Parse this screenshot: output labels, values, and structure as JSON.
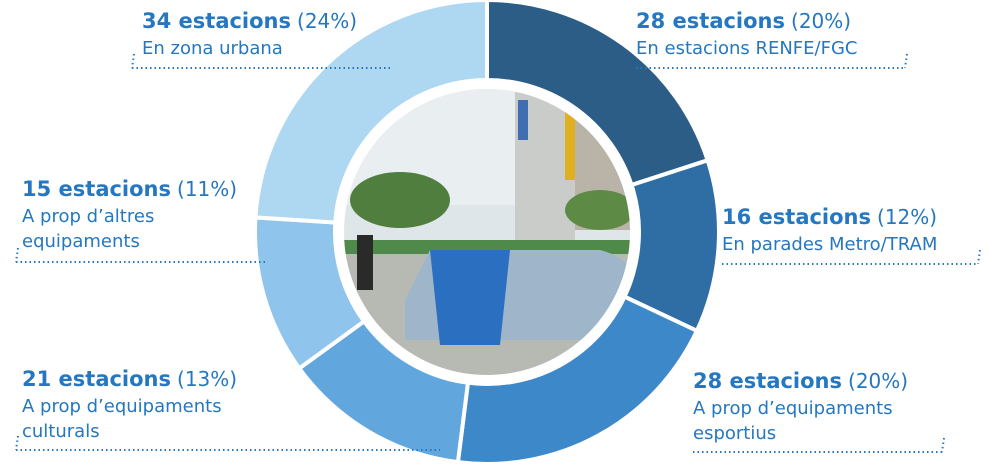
{
  "chart_data": {
    "type": "donut",
    "labels": [
      "28 estacions",
      "16 estacions",
      "28 estacions",
      "21 estacions",
      "15 estacions",
      "34 estacions"
    ],
    "values": [
      20,
      12,
      20,
      13,
      11,
      24
    ],
    "value_labels": [
      "(20%)",
      "(12%)",
      "(20%)",
      "(13%)",
      "(11%)",
      "(24%)"
    ],
    "descriptions": [
      [
        "En estacions RENFE/FGC"
      ],
      [
        "En parades Metro/TRAM"
      ],
      [
        "A prop d’equipaments",
        "esportius"
      ],
      [
        "A prop d’equipaments",
        "culturals"
      ],
      [
        "A prop d’altres",
        "equipaments"
      ],
      [
        "En zona urbana"
      ]
    ],
    "colors": [
      "#2c5d87",
      "#2f6ea5",
      "#3c88c8",
      "#62a6de",
      "#8fc5ec",
      "#aed7f2"
    ]
  }
}
